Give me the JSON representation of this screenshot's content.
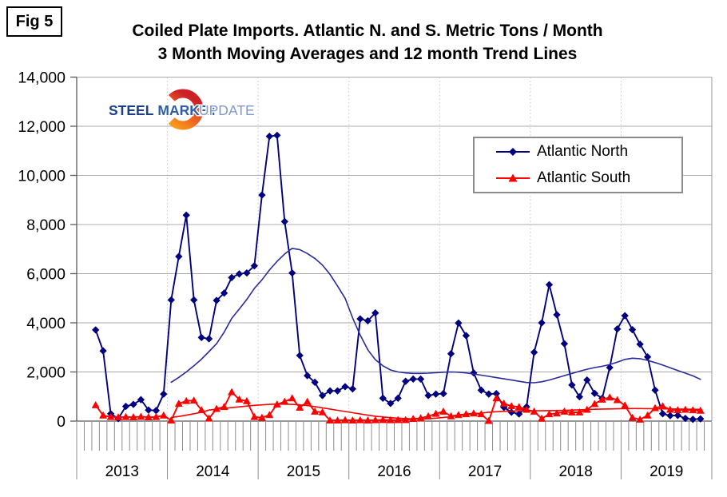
{
  "fig_label": "Fig 5",
  "title": {
    "line1": "Coiled Plate Imports. Atlantic N. and S. Metric Tons / Month",
    "line2": "3 Month Moving Averages and 12 month Trend Lines"
  },
  "logo": {
    "word1": "STEEL",
    "word2": "MARKET",
    "word3": "UPDATE",
    "word1_color": "#1b3f8f",
    "word2_color": "#2e5da6",
    "word3_color": "#7e99c9",
    "crescent_top_color": "#f89b1b",
    "crescent_mid_color": "#ee5b23",
    "crescent_bottom_color": "#cc2026"
  },
  "legend": {
    "items": [
      {
        "label": "Atlantic North",
        "color": "#000080",
        "marker": "diamond"
      },
      {
        "label": "Atlantic South",
        "color": "#ff0000",
        "marker": "triangle"
      }
    ]
  },
  "chart_data": {
    "type": "line",
    "title": "Coiled Plate Imports. Atlantic N. and S. Metric Tons / Month — 3 Month Moving Averages and 12 month Trend Lines",
    "ylabel": "Metric Tons / Month",
    "xlabel": "",
    "grid": {
      "horizontal": true,
      "vertical_year_lines": true
    },
    "legend_position": "upper right",
    "y_axis": {
      "min": 0,
      "max": 14000,
      "tick_interval": 2000,
      "tick_labels": [
        "0",
        "2,000",
        "4,000",
        "6,000",
        "8,000",
        "10,000",
        "12,000",
        "14,000"
      ]
    },
    "x_axis": {
      "months_start": "2013-01",
      "months_total": 84,
      "year_labels": [
        "2013",
        "2014",
        "2015",
        "2016",
        "2017",
        "2018",
        "2019"
      ]
    },
    "series": [
      {
        "name": "Atlantic North",
        "role": "3-month moving average",
        "color": "#000080",
        "marker": "diamond",
        "start_month": "2013-03",
        "values": [
          3710,
          2860,
          300,
          100,
          600,
          680,
          870,
          450,
          430,
          1100,
          4930,
          6700,
          8380,
          4930,
          3400,
          3350,
          4910,
          5210,
          5840,
          5990,
          6030,
          6320,
          9200,
          11590,
          11630,
          8120,
          6030,
          2670,
          1850,
          1580,
          1040,
          1230,
          1230,
          1400,
          1310,
          4160,
          4080,
          4400,
          930,
          720,
          930,
          1620,
          1710,
          1710,
          1040,
          1100,
          1120,
          2740,
          3990,
          3480,
          1960,
          1260,
          1100,
          1120,
          560,
          360,
          290,
          580,
          2800,
          4000,
          5550,
          4330,
          3150,
          1470,
          990,
          1670,
          1130,
          930,
          2180,
          3750,
          4290,
          3720,
          3130,
          2610,
          1260,
          300,
          220,
          230,
          110,
          70,
          90
        ]
      },
      {
        "name": "Atlantic South",
        "role": "3-month moving average",
        "color": "#ff0000",
        "marker": "triangle",
        "start_month": "2013-03",
        "values": [
          650,
          230,
          170,
          160,
          170,
          160,
          180,
          160,
          170,
          230,
          30,
          710,
          820,
          840,
          450,
          110,
          500,
          580,
          1180,
          880,
          815,
          170,
          140,
          250,
          680,
          790,
          930,
          550,
          790,
          390,
          360,
          30,
          30,
          40,
          30,
          40,
          30,
          40,
          50,
          40,
          45,
          45,
          90,
          120,
          200,
          300,
          390,
          200,
          250,
          283,
          315,
          283,
          10,
          930,
          715,
          610,
          575,
          465,
          390,
          100,
          283,
          315,
          390,
          358,
          358,
          465,
          700,
          878,
          965,
          855,
          640,
          140,
          65,
          230,
          530,
          610,
          465,
          445,
          465,
          445,
          425
        ]
      },
      {
        "name": "Atlantic North 12 month trend",
        "role": "12-month trend line",
        "color": "#2a2a9c",
        "marker": "none",
        "start_month": "2014-01",
        "values": [
          1580,
          1780,
          2000,
          2250,
          2520,
          2830,
          3150,
          3620,
          4180,
          4560,
          4950,
          5400,
          5750,
          6150,
          6500,
          6800,
          7030,
          6980,
          6820,
          6620,
          6350,
          5970,
          5500,
          5000,
          4200,
          3500,
          2900,
          2500,
          2250,
          2080,
          2000,
          1960,
          1940,
          1940,
          1950,
          1970,
          1990,
          2000,
          1990,
          1960,
          1920,
          1870,
          1820,
          1770,
          1720,
          1670,
          1620,
          1570,
          1560,
          1600,
          1670,
          1760,
          1850,
          1940,
          2030,
          2110,
          2180,
          2230,
          2300,
          2400,
          2510,
          2560,
          2540,
          2470,
          2380,
          2280,
          2170,
          2060,
          1950,
          1840,
          1700
        ]
      },
      {
        "name": "Atlantic South 12 month trend",
        "role": "12-month trend line",
        "color": "#ff0000",
        "marker": "none",
        "start_month": "2014-01",
        "values": [
          150,
          190,
          240,
          300,
          360,
          450,
          490,
          520,
          550,
          580,
          610,
          640,
          660,
          680,
          690,
          690,
          680,
          660,
          630,
          590,
          540,
          490,
          440,
          390,
          340,
          290,
          240,
          200,
          170,
          140,
          120,
          100,
          90,
          90,
          100,
          120,
          150,
          180,
          220,
          260,
          300,
          330,
          360,
          380,
          400,
          410,
          420,
          420,
          420,
          420,
          425,
          430,
          440,
          450,
          460,
          470,
          480,
          490,
          495,
          500,
          505,
          510,
          510,
          505,
          500,
          498,
          495,
          492,
          488,
          482,
          478
        ]
      }
    ]
  },
  "colors": {
    "gridline": "#ababab",
    "year_line": "#c6c6c6",
    "axis": "#595959",
    "tick": "#8c8c8c",
    "text": "#000000",
    "background": "#ffffff"
  }
}
